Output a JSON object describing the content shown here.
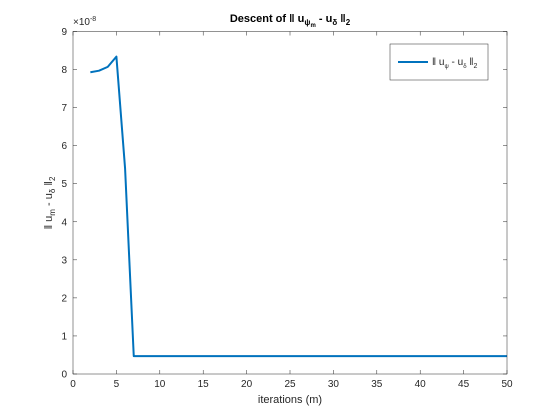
{
  "chart_data": {
    "type": "line",
    "title_prefix": "Descent of",
    "title_norm_open": "‖",
    "title_u": "u",
    "title_u_sub": "ψ",
    "title_u_subsub": "m",
    "title_minus": "-",
    "title_u2": "u",
    "title_u2_sub": "δ",
    "title_norm_close": "‖",
    "title_norm_sub": "2",
    "xlabel": "iterations (m)",
    "ylabel_norm_open": "‖",
    "ylabel_u": "u",
    "ylabel_u_sub": "m",
    "ylabel_minus": "-",
    "ylabel_u2": "u",
    "ylabel_u2_sub": "δ",
    "ylabel_norm_close": "‖",
    "ylabel_norm_sub": "2",
    "exponent_prefix": "×10",
    "exponent_power": "-8",
    "xlim": [
      0,
      50
    ],
    "ylim": [
      0,
      9
    ],
    "xticks": [
      "0",
      "5",
      "10",
      "15",
      "20",
      "25",
      "30",
      "35",
      "40",
      "45",
      "50"
    ],
    "yticks": [
      "0",
      "1",
      "2",
      "3",
      "4",
      "5",
      "6",
      "7",
      "8",
      "9"
    ],
    "grid": false,
    "legend_position": "top-right",
    "series": [
      {
        "legend_norm_open": "‖",
        "legend_u": "u",
        "legend_u_sub": "ψ",
        "legend_minus": "-",
        "legend_u2": "u",
        "legend_u2_sub": "δ",
        "legend_norm_close": "‖",
        "legend_norm_sub": "2",
        "color": "#0072BD",
        "x": [
          2,
          3,
          4,
          5,
          6,
          7,
          8,
          9,
          10,
          15,
          20,
          25,
          30,
          35,
          40,
          45,
          50
        ],
        "y": [
          7.93,
          7.97,
          8.07,
          8.34,
          5.4,
          0.47,
          0.47,
          0.47,
          0.47,
          0.47,
          0.47,
          0.47,
          0.47,
          0.47,
          0.47,
          0.47,
          0.47
        ]
      }
    ]
  }
}
